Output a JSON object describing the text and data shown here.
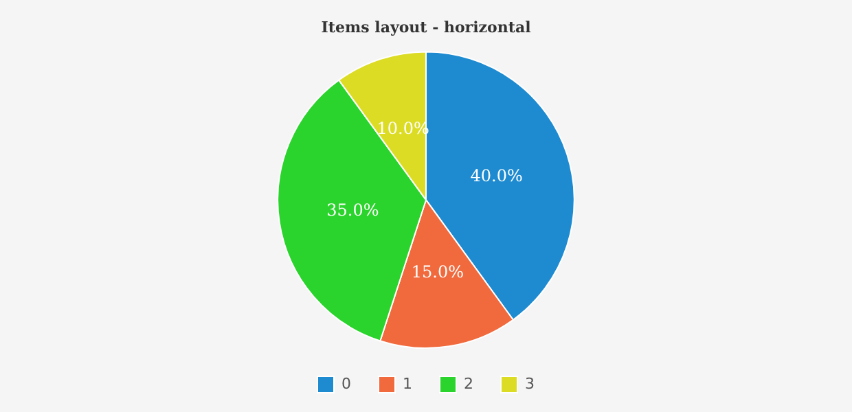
{
  "chart_data": {
    "type": "pie",
    "title": "Items layout - horizontal",
    "categories": [
      "0",
      "1",
      "2",
      "3"
    ],
    "values": [
      40,
      15,
      35,
      10
    ],
    "value_labels": [
      "40.0%",
      "15.0%",
      "35.0%",
      "10.0%"
    ],
    "colors": [
      "#1e8bd1",
      "#f16a3d",
      "#2ad42c",
      "#dcdc25"
    ],
    "legend": "bottom"
  }
}
